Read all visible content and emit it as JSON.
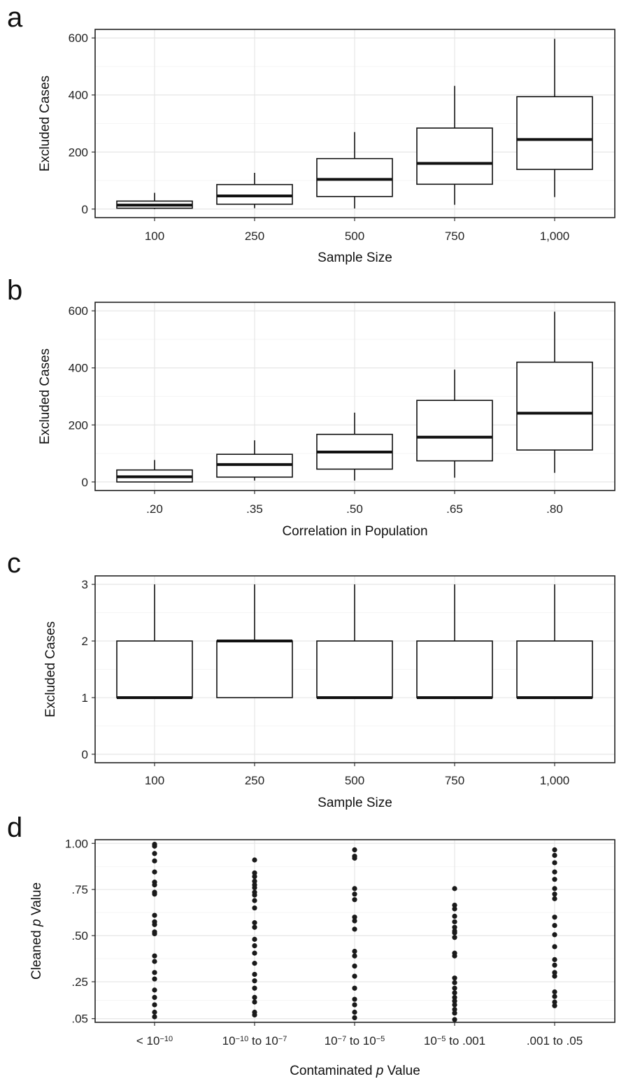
{
  "chart_data": [
    {
      "panel": "a",
      "type": "box",
      "xlabel": "Sample Size",
      "ylabel": "Excluded Cases",
      "ylim": [
        -30,
        630
      ],
      "yticks": [
        0,
        200,
        400,
        600
      ],
      "grid": true,
      "categories": [
        "100",
        "250",
        "500",
        "750",
        "1,000"
      ],
      "boxes": [
        {
          "min": 0,
          "q1": 3,
          "median": 14,
          "q3": 28,
          "max": 57
        },
        {
          "min": 3,
          "q1": 17,
          "median": 46,
          "q3": 86,
          "max": 127
        },
        {
          "min": 2,
          "q1": 44,
          "median": 104,
          "q3": 177,
          "max": 270
        },
        {
          "min": 15,
          "q1": 87,
          "median": 160,
          "q3": 284,
          "max": 432
        },
        {
          "min": 42,
          "q1": 139,
          "median": 244,
          "q3": 394,
          "max": 597
        }
      ]
    },
    {
      "panel": "b",
      "type": "box",
      "xlabel": "Correlation in Population",
      "ylabel": "Excluded Cases",
      "ylim": [
        -30,
        630
      ],
      "yticks": [
        0,
        200,
        400,
        600
      ],
      "grid": true,
      "categories": [
        ".20",
        ".35",
        ".50",
        ".65",
        ".80"
      ],
      "boxes": [
        {
          "min": 0,
          "q1": 0,
          "median": 18,
          "q3": 42,
          "max": 77
        },
        {
          "min": 5,
          "q1": 17,
          "median": 61,
          "q3": 97,
          "max": 146
        },
        {
          "min": 5,
          "q1": 45,
          "median": 105,
          "q3": 167,
          "max": 243
        },
        {
          "min": 15,
          "q1": 74,
          "median": 157,
          "q3": 286,
          "max": 394
        },
        {
          "min": 32,
          "q1": 112,
          "median": 241,
          "q3": 420,
          "max": 597
        }
      ]
    },
    {
      "panel": "c",
      "type": "box",
      "xlabel": "Sample Size",
      "ylabel": "Excluded Cases",
      "ylim": [
        -0.15,
        3.15
      ],
      "yticks": [
        0,
        1,
        2,
        3
      ],
      "grid": true,
      "categories": [
        "100",
        "250",
        "500",
        "750",
        "1,000"
      ],
      "boxes": [
        {
          "min": 1,
          "q1": 1,
          "median": 1,
          "q3": 2,
          "max": 3
        },
        {
          "min": 1,
          "q1": 1,
          "median": 2,
          "q3": 2,
          "max": 3
        },
        {
          "min": 1,
          "q1": 1,
          "median": 1,
          "q3": 2,
          "max": 3
        },
        {
          "min": 1,
          "q1": 1,
          "median": 1,
          "q3": 2,
          "max": 3
        },
        {
          "min": 1,
          "q1": 1,
          "median": 1,
          "q3": 2,
          "max": 3
        }
      ]
    },
    {
      "panel": "d",
      "type": "scatter",
      "xlabel_parts": [
        "Contaminated ",
        "p",
        " Value"
      ],
      "ylabel_parts": [
        "Cleaned ",
        "p",
        " Value"
      ],
      "ylim": [
        0.03,
        1.02
      ],
      "yticks": [
        0.05,
        0.25,
        0.5,
        0.75,
        1.0
      ],
      "ytick_labels": [
        ".05",
        ".25",
        ".50",
        ".75",
        "1.00"
      ],
      "grid": true,
      "categories": [
        [
          {
            "t": "< 10"
          },
          {
            "t": "−10",
            "sup": true
          }
        ],
        [
          {
            "t": "10"
          },
          {
            "t": "−10",
            "sup": true
          },
          {
            "t": " to 10"
          },
          {
            "t": "−7",
            "sup": true
          }
        ],
        [
          {
            "t": "10"
          },
          {
            "t": "−7",
            "sup": true
          },
          {
            "t": " to 10"
          },
          {
            "t": "−5",
            "sup": true
          }
        ],
        [
          {
            "t": "10"
          },
          {
            "t": "−5",
            "sup": true
          },
          {
            "t": " to .001"
          }
        ],
        [
          {
            "t": ".001 to .05"
          }
        ]
      ],
      "points": [
        [
          0.995,
          0.985,
          0.945,
          0.905,
          0.845,
          0.79,
          0.775,
          0.735,
          0.725,
          0.61,
          0.575,
          0.56,
          0.52,
          0.51,
          0.39,
          0.36,
          0.3,
          0.265,
          0.205,
          0.165,
          0.125,
          0.085,
          0.06
        ],
        [
          0.91,
          0.84,
          0.82,
          0.795,
          0.775,
          0.76,
          0.735,
          0.72,
          0.69,
          0.65,
          0.57,
          0.545,
          0.48,
          0.445,
          0.405,
          0.35,
          0.29,
          0.255,
          0.215,
          0.165,
          0.14,
          0.085,
          0.07
        ],
        [
          0.965,
          0.93,
          0.92,
          0.755,
          0.725,
          0.695,
          0.6,
          0.58,
          0.535,
          0.415,
          0.39,
          0.335,
          0.28,
          0.215,
          0.155,
          0.125,
          0.085,
          0.055
        ],
        [
          0.755,
          0.665,
          0.645,
          0.605,
          0.575,
          0.545,
          0.525,
          0.515,
          0.49,
          0.405,
          0.39,
          0.27,
          0.245,
          0.215,
          0.19,
          0.165,
          0.145,
          0.125,
          0.1,
          0.08,
          0.045
        ],
        [
          0.965,
          0.935,
          0.895,
          0.845,
          0.805,
          0.755,
          0.725,
          0.7,
          0.6,
          0.555,
          0.505,
          0.44,
          0.37,
          0.34,
          0.3,
          0.28,
          0.195,
          0.17,
          0.14,
          0.12
        ]
      ]
    }
  ]
}
